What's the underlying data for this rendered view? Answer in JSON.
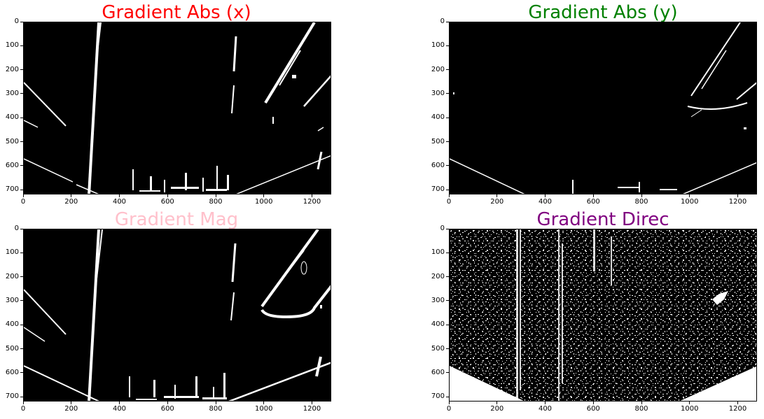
{
  "figure": {
    "panels": [
      {
        "id": "abs-x",
        "title": "Gradient Abs (x)",
        "title_color": "#ff0000"
      },
      {
        "id": "abs-y",
        "title": "Gradient Abs (y)",
        "title_color": "#008000"
      },
      {
        "id": "mag",
        "title": "Gradient Mag",
        "title_color": "#ffc0cb"
      },
      {
        "id": "direc",
        "title": "Gradient Direc",
        "title_color": "#800080"
      }
    ],
    "axes": {
      "x_ticks": [
        "0",
        "200",
        "400",
        "600",
        "800",
        "1000",
        "1200"
      ],
      "y_ticks": [
        "0",
        "100",
        "200",
        "300",
        "400",
        "500",
        "600",
        "700"
      ],
      "x_range": [
        0,
        1280
      ],
      "y_range": [
        0,
        720
      ]
    },
    "image_style": {
      "background": "#000000",
      "foreground": "#ffffff"
    }
  }
}
